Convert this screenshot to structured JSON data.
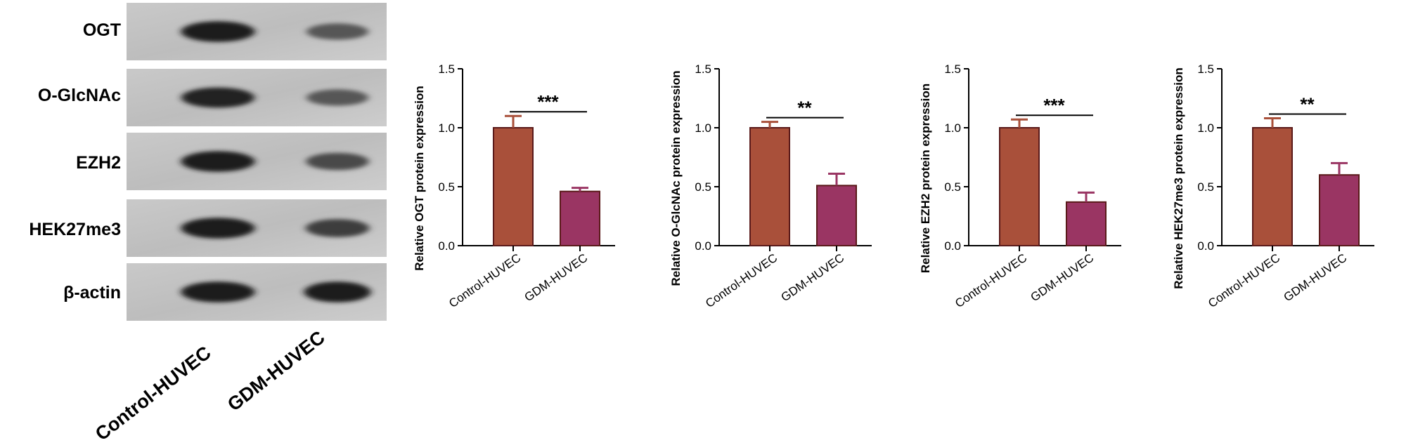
{
  "western_blot": {
    "rows": [
      {
        "label": "OGT",
        "intensity": [
          0.95,
          0.45
        ]
      },
      {
        "label": "O-GlcNAc",
        "intensity": [
          0.9,
          0.45
        ]
      },
      {
        "label": "EZH2",
        "intensity": [
          0.95,
          0.55
        ]
      },
      {
        "label": "HEK27me3",
        "intensity": [
          0.95,
          0.65
        ]
      },
      {
        "label": "β-actin",
        "intensity": [
          0.95,
          0.95
        ]
      }
    ],
    "lanes": [
      "Control-HUVEC",
      "GDM-HUVEC"
    ]
  },
  "chart_data": [
    {
      "type": "bar",
      "categories": [
        "Control-HUVEC",
        "GDM-HUVEC"
      ],
      "values": [
        1.0,
        0.46
      ],
      "errors": [
        0.1,
        0.03
      ],
      "ylabel": "Relative OGT protein expression",
      "ylim": [
        0,
        1.5
      ],
      "yticks": [
        "0.0",
        "0.5",
        "1.0",
        "1.5"
      ],
      "significance": "***",
      "colors": [
        "#A9503A",
        "#9A3563"
      ]
    },
    {
      "type": "bar",
      "categories": [
        "Control-HUVEC",
        "GDM-HUVEC"
      ],
      "values": [
        1.0,
        0.51
      ],
      "errors": [
        0.05,
        0.1
      ],
      "ylabel": "Relative O-GlcNAc protein expression",
      "ylim": [
        0,
        1.5
      ],
      "yticks": [
        "0.0",
        "0.5",
        "1.0",
        "1.5"
      ],
      "significance": "**",
      "colors": [
        "#A9503A",
        "#9A3563"
      ]
    },
    {
      "type": "bar",
      "categories": [
        "Control-HUVEC",
        "GDM-HUVEC"
      ],
      "values": [
        1.0,
        0.37
      ],
      "errors": [
        0.07,
        0.08
      ],
      "ylabel": "Relative EZH2 protein expression",
      "ylim": [
        0,
        1.5
      ],
      "yticks": [
        "0.0",
        "0.5",
        "1.0",
        "1.5"
      ],
      "significance": "***",
      "colors": [
        "#A9503A",
        "#9A3563"
      ]
    },
    {
      "type": "bar",
      "categories": [
        "Control-HUVEC",
        "GDM-HUVEC"
      ],
      "values": [
        1.0,
        0.6
      ],
      "errors": [
        0.08,
        0.1
      ],
      "ylabel": "Relative HEK27me3 protein expression",
      "ylim": [
        0,
        1.5
      ],
      "yticks": [
        "0.0",
        "0.5",
        "1.0",
        "1.5"
      ],
      "significance": "**",
      "colors": [
        "#A9503A",
        "#9A3563"
      ]
    }
  ]
}
